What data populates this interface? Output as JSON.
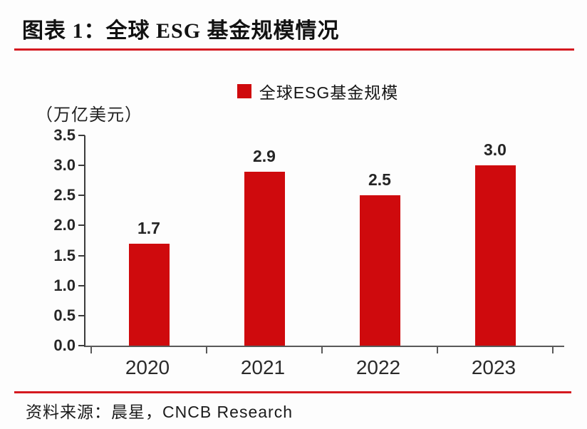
{
  "header": {
    "title": "图表 1：全球 ESG 基金规模情况"
  },
  "legend": {
    "label": "全球ESG基金规模"
  },
  "footer": {
    "source": "资料来源：晨星，CNCB Research"
  },
  "colors": {
    "bar_red": "#cf0a0d",
    "rule_red": "#d51920",
    "axis_gray": "#595959",
    "text_dark": "#1f1f1f"
  },
  "chart_data": {
    "type": "bar",
    "title": "全球ESG基金规模情况",
    "series_name": "全球ESG基金规模",
    "unit_label": "（万亿美元）",
    "categories": [
      "2020",
      "2021",
      "2022",
      "2023"
    ],
    "values": [
      1.7,
      2.9,
      2.5,
      3.0
    ],
    "value_labels": [
      "1.7",
      "2.9",
      "2.5",
      "3.0"
    ],
    "xlabel": "",
    "ylabel": "万亿美元",
    "ylim": [
      0.0,
      3.5
    ],
    "ytick_step": 0.5,
    "ytick_labels": [
      "0.0",
      "0.5",
      "1.0",
      "1.5",
      "2.0",
      "2.5",
      "3.0",
      "3.5"
    ],
    "grid": false,
    "legend_position": "top",
    "source": "晨星，CNCB Research"
  }
}
